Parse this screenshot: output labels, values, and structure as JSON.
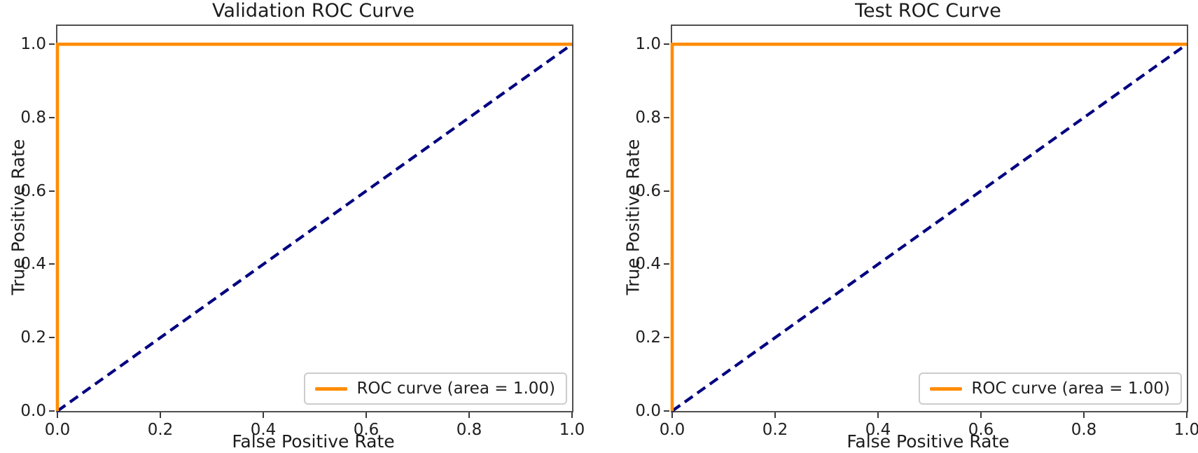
{
  "figure": {
    "background": "#ffffff"
  },
  "colors": {
    "roc_line": "#FF8C00",
    "chance_line": "#000080",
    "spine": "#4f4f4f",
    "tick": "#3a3a3a",
    "text": "#1c1c1c",
    "legend_border": "#cccccc"
  },
  "chart_data": [
    {
      "type": "line",
      "title": "Validation ROC Curve",
      "xlabel": "False Positive Rate",
      "ylabel": "True Positive Rate",
      "xlim": [
        0.0,
        1.0
      ],
      "ylim": [
        0.0,
        1.05
      ],
      "grid": false,
      "xticks": {
        "values": [
          0.0,
          0.2,
          0.4,
          0.6,
          0.8,
          1.0
        ],
        "labels": [
          "0.0",
          "0.2",
          "0.4",
          "0.6",
          "0.8",
          "1.0"
        ]
      },
      "yticks": {
        "values": [
          0.0,
          0.2,
          0.4,
          0.6,
          0.8,
          1.0
        ],
        "labels": [
          "0.0",
          "0.2",
          "0.4",
          "0.6",
          "0.8",
          "1.0"
        ]
      },
      "series": [
        {
          "name": "chance-diagonal-line",
          "x": [
            0.0,
            1.0
          ],
          "y": [
            0.0,
            1.0
          ],
          "color": "#000080",
          "style": "dashed",
          "width": 4.2
        },
        {
          "name": "roc-curve-line",
          "x": [
            0.0,
            0.0,
            1.0
          ],
          "y": [
            0.0,
            1.0,
            1.0
          ],
          "color": "#FF8C00",
          "style": "solid",
          "width": 4.6,
          "auc": 1.0
        }
      ],
      "legend": {
        "position": "lower right",
        "entries": [
          {
            "label": "ROC curve (area = 1.00)",
            "color": "#FF8C00",
            "style": "solid"
          }
        ]
      }
    },
    {
      "type": "line",
      "title": "Test ROC Curve",
      "xlabel": "False Positive Rate",
      "ylabel": "True Positive Rate",
      "xlim": [
        0.0,
        1.0
      ],
      "ylim": [
        0.0,
        1.05
      ],
      "grid": false,
      "xticks": {
        "values": [
          0.0,
          0.2,
          0.4,
          0.6,
          0.8,
          1.0
        ],
        "labels": [
          "0.0",
          "0.2",
          "0.4",
          "0.6",
          "0.8",
          "1.0"
        ]
      },
      "yticks": {
        "values": [
          0.0,
          0.2,
          0.4,
          0.6,
          0.8,
          1.0
        ],
        "labels": [
          "0.0",
          "0.2",
          "0.4",
          "0.6",
          "0.8",
          "1.0"
        ]
      },
      "series": [
        {
          "name": "chance-diagonal-line",
          "x": [
            0.0,
            1.0
          ],
          "y": [
            0.0,
            1.0
          ],
          "color": "#000080",
          "style": "dashed",
          "width": 4.2
        },
        {
          "name": "roc-curve-line",
          "x": [
            0.0,
            0.0,
            1.0
          ],
          "y": [
            0.0,
            1.0,
            1.0
          ],
          "color": "#FF8C00",
          "style": "solid",
          "width": 4.6,
          "auc": 1.0
        }
      ],
      "legend": {
        "position": "lower right",
        "entries": [
          {
            "label": "ROC curve (area = 1.00)",
            "color": "#FF8C00",
            "style": "solid"
          }
        ]
      }
    }
  ]
}
